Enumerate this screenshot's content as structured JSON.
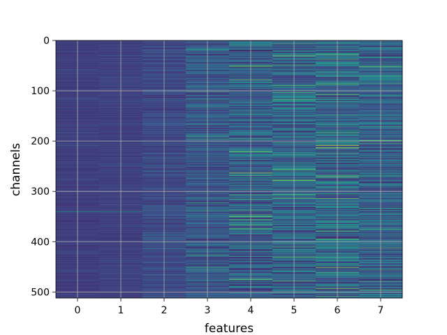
{
  "chart_data": {
    "type": "heatmap",
    "title": "",
    "xlabel": "features",
    "ylabel": "channels",
    "x_categories": [
      "0",
      "1",
      "2",
      "3",
      "4",
      "5",
      "6",
      "7"
    ],
    "y_ticks": [
      0,
      100,
      200,
      300,
      400,
      500
    ],
    "y_tick_labels": [
      "0",
      "100",
      "200",
      "300",
      "400",
      "500"
    ],
    "xlim": [
      -0.5,
      7.5
    ],
    "ylim": [
      512,
      0
    ],
    "n_channels": 512,
    "n_features": 8,
    "grid": true,
    "colormap": "viridis",
    "colormap_stops": [
      "#440154",
      "#3b528b",
      "#21918c",
      "#5ec962",
      "#fde725"
    ],
    "typical_column_intensity": [
      0.18,
      0.19,
      0.22,
      0.27,
      0.3,
      0.31,
      0.33,
      0.3
    ],
    "column_variability": [
      0.03,
      0.03,
      0.07,
      0.14,
      0.2,
      0.2,
      0.22,
      0.18
    ],
    "notable_cells": [
      {
        "feature": 0,
        "channel": 340,
        "intensity": 0.5
      },
      {
        "feature": 1,
        "channel": 340,
        "intensity": 0.45
      },
      {
        "feature": 3,
        "channel": 18,
        "intensity": 0.55
      },
      {
        "feature": 3,
        "channel": 322,
        "intensity": 0.6
      },
      {
        "feature": 4,
        "channel": 50,
        "intensity": 0.75
      },
      {
        "feature": 4,
        "channel": 220,
        "intensity": 0.6
      },
      {
        "feature": 4,
        "channel": 263,
        "intensity": 0.85
      },
      {
        "feature": 4,
        "channel": 375,
        "intensity": 0.6
      },
      {
        "feature": 4,
        "channel": 475,
        "intensity": 0.6
      },
      {
        "feature": 5,
        "channel": 30,
        "intensity": 0.8
      },
      {
        "feature": 5,
        "channel": 277,
        "intensity": 0.75
      },
      {
        "feature": 6,
        "channel": 28,
        "intensity": 0.65
      },
      {
        "feature": 6,
        "channel": 107,
        "intensity": 0.75
      },
      {
        "feature": 6,
        "channel": 208,
        "intensity": 0.95
      },
      {
        "feature": 6,
        "channel": 213,
        "intensity": 0.9
      },
      {
        "feature": 6,
        "channel": 270,
        "intensity": 0.75
      },
      {
        "feature": 7,
        "channel": 85,
        "intensity": 0.6
      },
      {
        "feature": 7,
        "channel": 375,
        "intensity": 0.6
      }
    ]
  }
}
